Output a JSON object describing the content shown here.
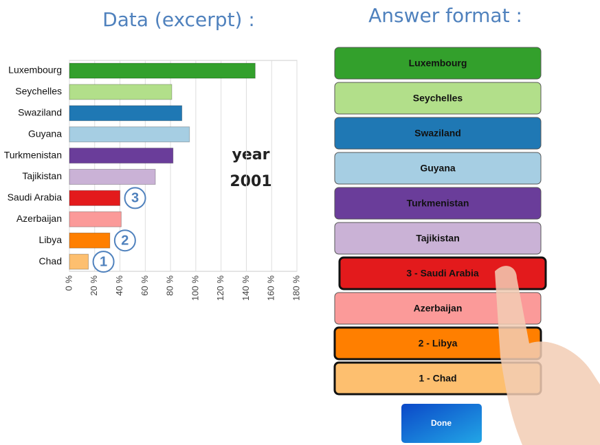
{
  "chart_data": {
    "type": "hbar",
    "title": "Data (excerpt) :",
    "categories": [
      "Luxembourg",
      "Seychelles",
      "Swaziland",
      "Guyana",
      "Turkmenistan",
      "Tajikistan",
      "Saudi Arabia",
      "Azerbaijan",
      "Libya",
      "Chad"
    ],
    "values": [
      147,
      81,
      89,
      95,
      82,
      68,
      40,
      41,
      32,
      15
    ],
    "colors": [
      "#33a02c",
      "#b2df8a",
      "#1f78b4",
      "#a6cee3",
      "#6a3d9a",
      "#cab2d6",
      "#e31a1c",
      "#fb9a99",
      "#ff7f00",
      "#fdbf6f"
    ],
    "xlim": [
      0,
      180
    ],
    "xticks": [
      {
        "value": 0,
        "label": "0 %"
      },
      {
        "value": 20,
        "label": "20 %"
      },
      {
        "value": 40,
        "label": "40 %"
      },
      {
        "value": 60,
        "label": "60 %"
      },
      {
        "value": 80,
        "label": "80 %"
      },
      {
        "value": 100,
        "label": "100 %"
      },
      {
        "value": 120,
        "label": "120 %"
      },
      {
        "value": 140,
        "label": "140 %"
      },
      {
        "value": 160,
        "label": "160 %"
      },
      {
        "value": 180,
        "label": "180 %"
      }
    ],
    "grid": true,
    "year_label": "year",
    "year": "2001",
    "annotations": [
      {
        "text": "3",
        "category": "Saudi Arabia"
      },
      {
        "text": "2",
        "category": "Libya"
      },
      {
        "text": "1",
        "category": "Chad"
      }
    ]
  },
  "answer": {
    "title": "Answer format :",
    "buttons": [
      {
        "label": "Luxembourg",
        "color": "#33a02c",
        "selected": false
      },
      {
        "label": "Seychelles",
        "color": "#b2df8a",
        "selected": false
      },
      {
        "label": "Swaziland",
        "color": "#1f78b4",
        "selected": false
      },
      {
        "label": "Guyana",
        "color": "#a6cee3",
        "selected": false
      },
      {
        "label": "Turkmenistan",
        "color": "#6a3d9a",
        "selected": false
      },
      {
        "label": "Tajikistan",
        "color": "#cab2d6",
        "selected": false
      },
      {
        "label": "3 - Saudi Arabia",
        "color": "#e31a1c",
        "selected": true
      },
      {
        "label": "Azerbaijan",
        "color": "#fb9a99",
        "selected": false
      },
      {
        "label": "2 - Libya",
        "color": "#ff7f00",
        "selected": true
      },
      {
        "label": "1 - Chad",
        "color": "#fdbf6f",
        "selected": true
      }
    ],
    "done": "Done"
  }
}
